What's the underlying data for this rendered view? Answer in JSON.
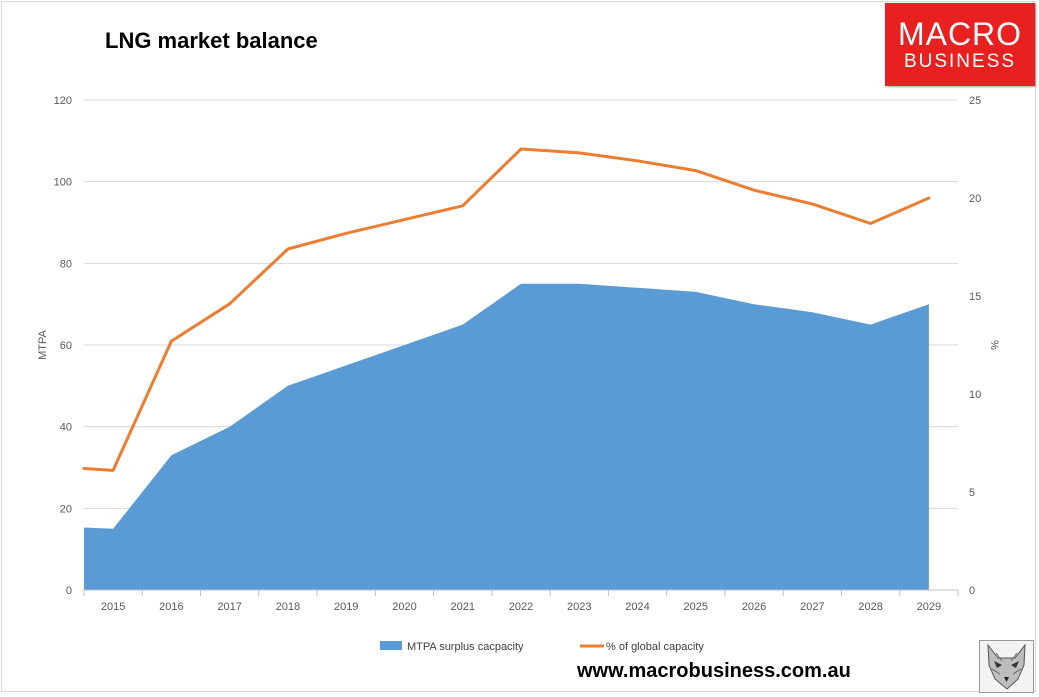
{
  "header": {
    "title": "LNG market balance"
  },
  "logo": {
    "line1": "MACRO",
    "line2": "BUSINESS"
  },
  "footer": {
    "url": "www.macrobusiness.com.au"
  },
  "chart_data": {
    "type": "area",
    "title": "LNG market balance",
    "categories": [
      "2015",
      "2016",
      "2017",
      "2018",
      "2019",
      "2020",
      "2021",
      "2022",
      "2023",
      "2024",
      "2025",
      "2026",
      "2027",
      "2028",
      "2029"
    ],
    "x_start": 2014.5,
    "ylabel": "MTPA",
    "y2label": "%",
    "ylim": [
      0,
      120
    ],
    "y2lim": [
      0,
      25
    ],
    "yticks": [
      0,
      20,
      40,
      60,
      80,
      100,
      120
    ],
    "y2ticks": [
      0,
      5,
      10,
      15,
      20,
      25
    ],
    "grid": true,
    "legend_position": "bottom",
    "series": [
      {
        "name": "MTPA surplus cacpacity",
        "type": "area",
        "axis": "left",
        "color": "#5b9bd5",
        "start_value": 15.3,
        "values": [
          15,
          33,
          40,
          50,
          55,
          60,
          65,
          75,
          75,
          74,
          73,
          70,
          68,
          65,
          70
        ]
      },
      {
        "name": "% of global capacity",
        "type": "line",
        "axis": "right",
        "color": "#ed7d31",
        "start_value": 6.2,
        "values": [
          6.1,
          12.7,
          14.6,
          17.4,
          18.2,
          18.9,
          19.6,
          22.5,
          22.3,
          21.9,
          21.4,
          20.4,
          19.7,
          18.7,
          20.0
        ]
      }
    ]
  }
}
